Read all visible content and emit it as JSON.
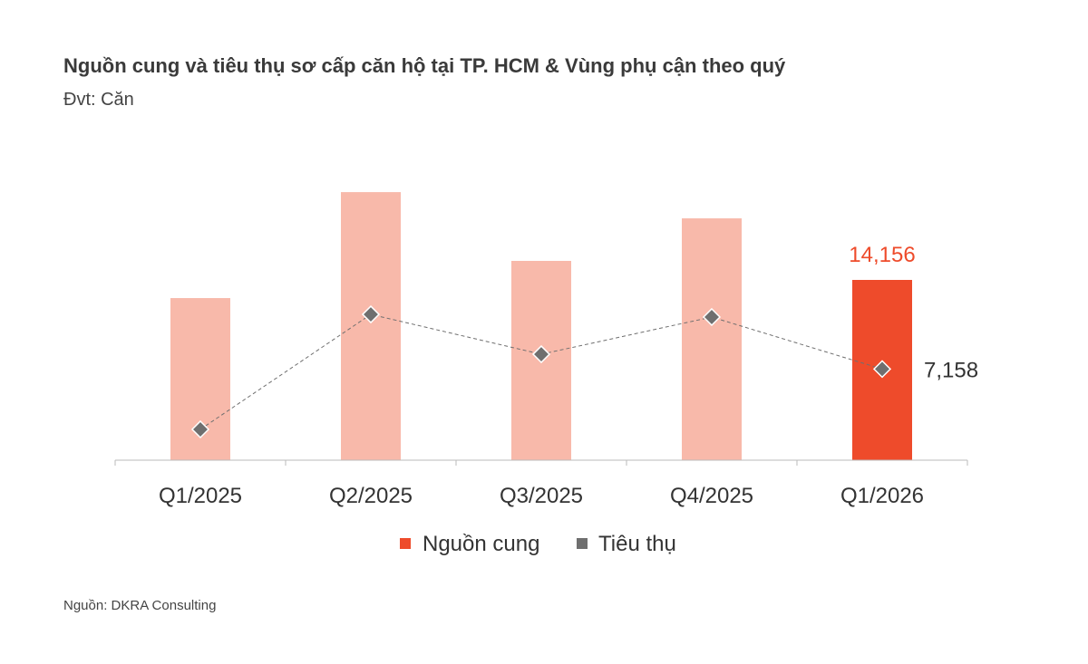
{
  "title": "Nguồn cung và tiêu thụ sơ cấp căn hộ tại TP. HCM & Vùng phụ cận theo quý",
  "subtitle": "Đvt: Căn",
  "source": "Nguồn: DKRA Consulting",
  "chart_data": {
    "type": "bar",
    "categories": [
      "Q1/2025",
      "Q2/2025",
      "Q3/2025",
      "Q4/2025",
      "Q1/2026"
    ],
    "series": [
      {
        "name": "Nguồn cung",
        "type": "bar",
        "values": [
          12730,
          21050,
          15650,
          18990,
          14156
        ],
        "color": "#f8b9aa",
        "highlight_color": "#ee4b2b"
      },
      {
        "name": "Tiêu thụ",
        "type": "line",
        "values": [
          2420,
          11450,
          8320,
          11240,
          7158
        ],
        "color": "#6f6f6f",
        "line_style": "dashed",
        "marker": "diamond"
      }
    ],
    "data_labels": {
      "bar_last": "14,156",
      "line_last": "7,158"
    },
    "ylim": [
      0,
      24000
    ],
    "grid": false,
    "legend": "bottom"
  }
}
